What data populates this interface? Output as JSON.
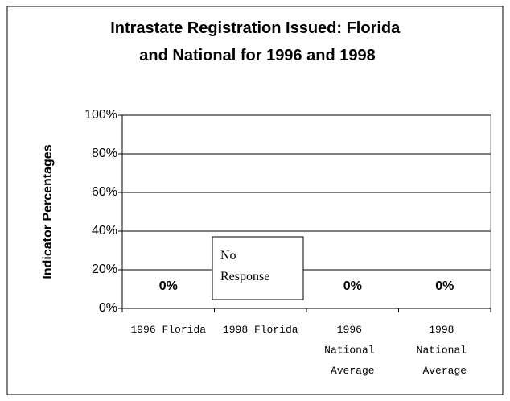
{
  "chart_data": {
    "type": "bar",
    "title": "Intrastate Registration Issued: Florida and National for 1996 and 1998",
    "y_label": "Indicator Percentages",
    "categories": [
      "1996 Florida",
      "1998 Florida",
      "1996 National Average",
      "1998 National Average"
    ],
    "values": [
      0,
      null,
      0,
      0
    ],
    "value_labels": [
      "0%",
      null,
      "0%",
      "0%"
    ],
    "color": "#808080",
    "annotation": "No Response",
    "ylim": [
      0,
      100
    ],
    "yticks": [
      {
        "value": 0,
        "label": "0%"
      },
      {
        "value": 20,
        "label": "20%"
      },
      {
        "value": 40,
        "label": "40%"
      },
      {
        "value": 60,
        "label": "60%"
      },
      {
        "value": 80,
        "label": "80%"
      },
      {
        "value": 100,
        "label": "100%"
      }
    ],
    "grid": true
  }
}
